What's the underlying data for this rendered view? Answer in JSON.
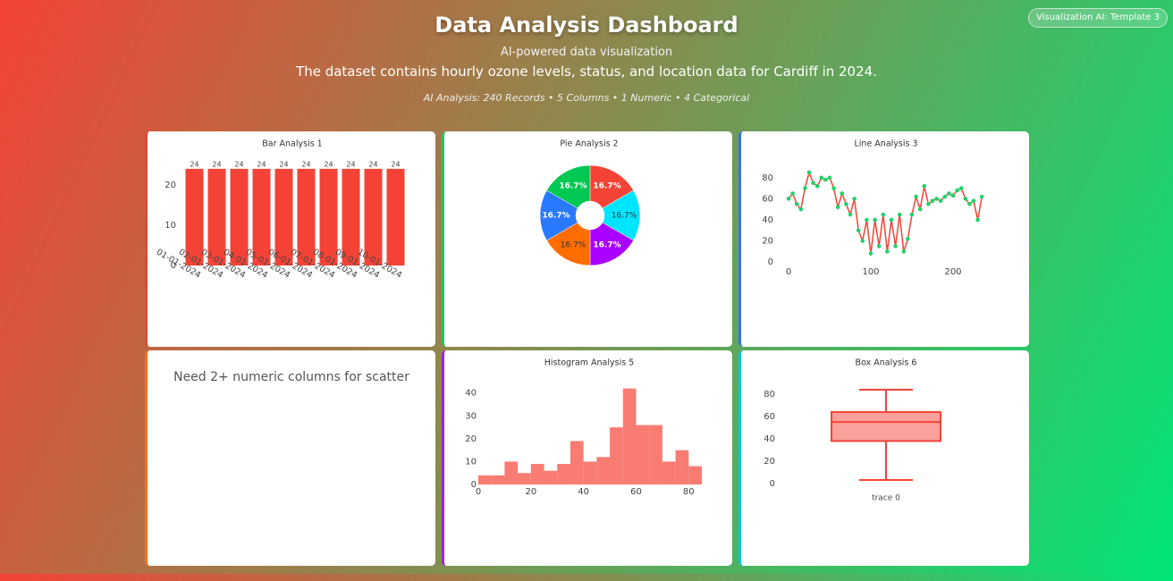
{
  "header": {
    "title": "Data Analysis Dashboard",
    "subtitle": "AI-powered data visualization",
    "description": "The dataset contains hourly ozone levels, status, and location data for Cardiff in 2024.",
    "analysis": "AI Analysis: 240 Records • 5 Columns • 1 Numeric • 4 Categorical"
  },
  "badge": "Visualization AI: Template 3",
  "scatter_card": {
    "message": "Need 2+ numeric columns for scatter"
  },
  "chart_data": [
    {
      "type": "bar",
      "title": "Bar Analysis 1",
      "color": "#f44336",
      "categories": [
        "01-01-2024",
        "02-01-2024",
        "03-01-2024",
        "04-01-2024",
        "05-01-2024",
        "06-01-2024",
        "07-01-2024",
        "08-01-2024",
        "09-01-2024",
        "10-01-2024"
      ],
      "values": [
        24,
        24,
        24,
        24,
        24,
        24,
        24,
        24,
        24,
        24
      ],
      "ylim": [
        0,
        25.3
      ],
      "yticks": [
        0,
        10,
        20
      ]
    },
    {
      "type": "pie",
      "title": "Pie Analysis 2",
      "values": [
        16.7,
        16.7,
        16.7,
        16.7,
        16.7,
        16.7
      ],
      "value_labels": [
        "16.7%",
        "16.7%",
        "16.7%",
        "16.7%",
        "16.7%",
        "16.7%"
      ],
      "colors": [
        "#f44336",
        "#00e5ff",
        "#aa00ff",
        "#ff6d00",
        "#2979ff",
        "#00c853"
      ]
    },
    {
      "type": "line",
      "title": "Line Analysis 3",
      "color": "#f44336",
      "marker_color": "#1fd36a",
      "x": [
        0,
        5,
        10,
        15,
        20,
        25,
        30,
        35,
        40,
        45,
        50,
        55,
        60,
        65,
        70,
        75,
        80,
        85,
        90,
        95,
        100,
        105,
        110,
        115,
        120,
        125,
        130,
        135,
        140,
        145,
        150,
        155,
        160,
        165,
        170,
        175,
        180,
        185,
        190,
        195,
        200,
        205,
        210,
        215,
        220,
        225,
        230,
        235
      ],
      "values": [
        60,
        65,
        55,
        50,
        70,
        85,
        75,
        72,
        80,
        78,
        80,
        70,
        52,
        65,
        55,
        45,
        60,
        30,
        20,
        40,
        8,
        40,
        15,
        45,
        10,
        40,
        15,
        45,
        10,
        22,
        45,
        62,
        50,
        72,
        55,
        58,
        60,
        58,
        62,
        65,
        63,
        68,
        70,
        60,
        55,
        58,
        40,
        62
      ],
      "xlim": [
        -5,
        250
      ],
      "xticks": [
        0,
        100,
        200
      ],
      "ylim": [
        -5,
        90
      ],
      "yticks": [
        0,
        20,
        40,
        60,
        80
      ]
    },
    {
      "type": "histogram",
      "title": "Histogram Analysis 5",
      "color": "#f87c72",
      "bins": [
        0,
        5,
        10,
        15,
        20,
        25,
        30,
        35,
        40,
        45,
        50,
        55,
        60,
        65,
        70,
        75,
        80,
        85
      ],
      "values": [
        4,
        4,
        10,
        5,
        9,
        6,
        9,
        19,
        10,
        12,
        25,
        42,
        26,
        26,
        10,
        15,
        8
      ],
      "xlim": [
        0,
        85
      ],
      "xticks": [
        0,
        20,
        40,
        60,
        80
      ],
      "ylim": [
        0,
        44.2
      ],
      "yticks": [
        0,
        10,
        20,
        30,
        40
      ]
    },
    {
      "type": "box",
      "title": "Box Analysis 6",
      "color": "#f44336",
      "categories": [
        "trace 0"
      ],
      "min": 3,
      "q1": 38,
      "median": 55,
      "q3": 64,
      "max": 84,
      "ylim": [
        -5,
        90
      ],
      "yticks": [
        0,
        20,
        40,
        60,
        80
      ]
    }
  ]
}
